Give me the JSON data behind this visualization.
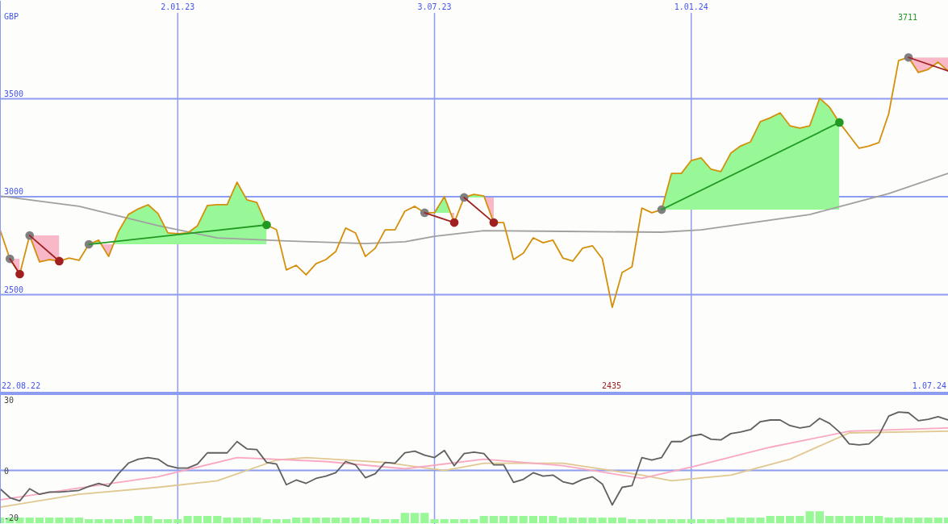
{
  "chart_data": [
    {
      "type": "line",
      "ylabel": "GBP",
      "xlim": [
        "2022-08-29",
        "2024-07-01"
      ],
      "ylim": [
        2000,
        4000
      ],
      "xticks": [
        {
          "value": "2023-01-02",
          "label": "2.01.23"
        },
        {
          "value": "2023-07-03",
          "label": "3.07.23"
        },
        {
          "value": "2024-01-01",
          "label": "1.01.24"
        }
      ],
      "yticks": [
        2500,
        3000,
        3500
      ],
      "grid": true,
      "annotations": [
        "22.08.22",
        "1.07.24",
        "2435",
        "3711"
      ],
      "x": [
        "2022-08-29",
        "2022-09-05",
        "2022-09-12",
        "2022-09-19",
        "2022-09-26",
        "2022-10-03",
        "2022-10-10",
        "2022-10-17",
        "2022-10-24",
        "2022-10-31",
        "2022-11-07",
        "2022-11-14",
        "2022-11-21",
        "2022-11-28",
        "2022-12-05",
        "2022-12-12",
        "2022-12-19",
        "2022-12-26",
        "2023-01-02",
        "2023-01-09",
        "2023-01-16",
        "2023-01-23",
        "2023-01-30",
        "2023-02-06",
        "2023-02-13",
        "2023-02-20",
        "2023-02-27",
        "2023-03-06",
        "2023-03-13",
        "2023-03-20",
        "2023-03-27",
        "2023-04-03",
        "2023-04-10",
        "2023-04-17",
        "2023-04-24",
        "2023-05-01",
        "2023-05-08",
        "2023-05-15",
        "2023-05-22",
        "2023-05-29",
        "2023-06-05",
        "2023-06-12",
        "2023-06-19",
        "2023-06-26",
        "2023-07-03",
        "2023-07-10",
        "2023-07-17",
        "2023-07-24",
        "2023-07-31",
        "2023-08-07",
        "2023-08-14",
        "2023-08-21",
        "2023-08-28",
        "2023-09-04",
        "2023-09-11",
        "2023-09-18",
        "2023-09-25",
        "2023-10-02",
        "2023-10-09",
        "2023-10-16",
        "2023-10-23",
        "2023-10-30",
        "2023-11-06",
        "2023-11-13",
        "2023-11-20",
        "2023-11-27",
        "2023-12-04",
        "2023-12-11",
        "2023-12-18",
        "2023-12-25",
        "2024-01-01",
        "2024-01-08",
        "2024-01-15",
        "2024-01-22",
        "2024-01-29",
        "2024-02-05",
        "2024-02-12",
        "2024-02-19",
        "2024-02-26",
        "2024-03-04",
        "2024-03-11",
        "2024-03-18",
        "2024-03-25",
        "2024-04-01",
        "2024-04-08",
        "2024-04-15",
        "2024-04-22",
        "2024-04-29",
        "2024-05-06",
        "2024-05-13",
        "2024-05-20",
        "2024-05-27",
        "2024-06-03",
        "2024-06-10",
        "2024-06-17",
        "2024-06-24",
        "2024-07-01"
      ],
      "series": [
        {
          "color": "#a0a0a0",
          "x": [
            "2022-08-29",
            "2022-10-24",
            "2022-12-19",
            "2023-01-30",
            "2023-03-20",
            "2023-05-15",
            "2023-06-12",
            "2023-07-03",
            "2023-08-07",
            "2023-10-02",
            "2023-12-11",
            "2024-01-08",
            "2024-03-25",
            "2024-05-20",
            "2024-07-01"
          ],
          "values": [
            3004,
            2951,
            2852,
            2790,
            2774,
            2761,
            2770,
            2798,
            2827,
            2823,
            2819,
            2831,
            2909,
            3016,
            3119
          ]
        },
        {
          "color": "#d4900a",
          "values": [
            2831,
            2683,
            2605,
            2802,
            2667,
            2679,
            2671,
            2687,
            2675,
            2757,
            2778,
            2695,
            2823,
            2909,
            2938,
            2959,
            2914,
            2815,
            2811,
            2815,
            2852,
            2955,
            2959,
            2959,
            3074,
            2984,
            2971,
            2856,
            2831,
            2626,
            2650,
            2601,
            2658,
            2679,
            2720,
            2840,
            2815,
            2695,
            2737,
            2831,
            2831,
            2926,
            2951,
            2918,
            2918,
            3000,
            2868,
            2996,
            3012,
            3004,
            2868,
            2868,
            2679,
            2712,
            2790,
            2765,
            2778,
            2687,
            2671,
            2737,
            2749,
            2683,
            2435,
            2613,
            2642,
            2942,
            2918,
            2934,
            3119,
            3119,
            3185,
            3198,
            3140,
            3128,
            3222,
            3259,
            3280,
            3383,
            3403,
            3428,
            3362,
            3350,
            3362,
            3502,
            3457,
            3379,
            3313,
            3247,
            3259,
            3276,
            3424,
            3695,
            3711,
            3634,
            3650,
            3687,
            3642
          ]
        },
        {
          "type": "scatter",
          "marker": "circle",
          "color": "#808080",
          "x": [
            "2022-09-05",
            "2022-09-19",
            "2022-10-31",
            "2023-06-26",
            "2023-07-24",
            "2023-12-11",
            "2024-06-03"
          ],
          "values": [
            2683,
            2802,
            2757,
            2918,
            2996,
            2934,
            3711
          ]
        },
        {
          "type": "scatter",
          "marker": "circle",
          "color": "#a02020",
          "x": [
            "2022-09-12",
            "2022-10-10",
            "2023-07-17",
            "2023-08-14"
          ],
          "values": [
            2605,
            2671,
            2868,
            2868
          ]
        },
        {
          "type": "scatter",
          "marker": "circle",
          "color": "#229922",
          "x": [
            "2023-03-06",
            "2024-04-15"
          ],
          "values": [
            2856,
            3379
          ]
        },
        {
          "color": "#a02020",
          "x": [
            "2022-09-05",
            "2022-09-12"
          ],
          "values": [
            2683,
            2605
          ]
        },
        {
          "color": "#a02020",
          "x": [
            "2022-09-19",
            "2022-10-10"
          ],
          "values": [
            2802,
            2671
          ]
        },
        {
          "color": "#229922",
          "x": [
            "2022-10-31",
            "2023-03-06"
          ],
          "values": [
            2757,
            2856
          ]
        },
        {
          "color": "#a02020",
          "x": [
            "2023-06-26",
            "2023-07-17"
          ],
          "values": [
            2918,
            2868
          ]
        },
        {
          "color": "#a02020",
          "x": [
            "2023-07-24",
            "2023-08-14"
          ],
          "values": [
            2996,
            2868
          ]
        },
        {
          "color": "#229922",
          "x": [
            "2023-12-11",
            "2024-04-15"
          ],
          "values": [
            2934,
            3379
          ]
        },
        {
          "color": "#a02020",
          "x": [
            "2024-06-03",
            "2024-07-01"
          ],
          "values": [
            3711,
            3642
          ]
        }
      ]
    },
    {
      "type": "line",
      "xlim": [
        "2022-08-29",
        "2024-07-01"
      ],
      "ylim": [
        -22.5,
        32.5
      ],
      "xticks": [
        {
          "value": "2023-01-02",
          "label": null
        },
        {
          "value": "2023-07-03",
          "label": null
        },
        {
          "value": "2024-01-01",
          "label": null
        }
      ],
      "yticks": [
        -20,
        0,
        30
      ],
      "tick_labels": "y",
      "grid": "x",
      "ref_lines": [
        {
          "axis": "y",
          "value": 0
        }
      ],
      "x": [
        "2022-08-29",
        "2022-09-05",
        "2022-09-12",
        "2022-09-19",
        "2022-09-26",
        "2022-10-03",
        "2022-10-10",
        "2022-10-17",
        "2022-10-24",
        "2022-10-31",
        "2022-11-07",
        "2022-11-14",
        "2022-11-21",
        "2022-11-28",
        "2022-12-05",
        "2022-12-12",
        "2022-12-19",
        "2022-12-26",
        "2023-01-02",
        "2023-01-09",
        "2023-01-16",
        "2023-01-23",
        "2023-01-30",
        "2023-02-06",
        "2023-02-13",
        "2023-02-20",
        "2023-02-27",
        "2023-03-06",
        "2023-03-13",
        "2023-03-20",
        "2023-03-27",
        "2023-04-03",
        "2023-04-10",
        "2023-04-17",
        "2023-04-24",
        "2023-05-01",
        "2023-05-08",
        "2023-05-15",
        "2023-05-22",
        "2023-05-29",
        "2023-06-05",
        "2023-06-12",
        "2023-06-19",
        "2023-06-26",
        "2023-07-03",
        "2023-07-10",
        "2023-07-17",
        "2023-07-24",
        "2023-07-31",
        "2023-08-07",
        "2023-08-14",
        "2023-08-21",
        "2023-08-28",
        "2023-09-04",
        "2023-09-11",
        "2023-09-18",
        "2023-09-25",
        "2023-10-02",
        "2023-10-09",
        "2023-10-16",
        "2023-10-23",
        "2023-10-30",
        "2023-11-06",
        "2023-11-13",
        "2023-11-20",
        "2023-11-27",
        "2023-12-04",
        "2023-12-11",
        "2023-12-18",
        "2023-12-25",
        "2024-01-01",
        "2024-01-08",
        "2024-01-15",
        "2024-01-22",
        "2024-01-29",
        "2024-02-05",
        "2024-02-12",
        "2024-02-19",
        "2024-02-26",
        "2024-03-04",
        "2024-03-11",
        "2024-03-18",
        "2024-03-25",
        "2024-04-01",
        "2024-04-08",
        "2024-04-15",
        "2024-04-22",
        "2024-04-29",
        "2024-05-06",
        "2024-05-13",
        "2024-05-20",
        "2024-05-27",
        "2024-06-03",
        "2024-06-10",
        "2024-06-17",
        "2024-06-24",
        "2024-07-01"
      ],
      "series": [
        {
          "type": "bar",
          "color": "#98f898",
          "values": [
            2.4,
            2.4,
            2.4,
            2.4,
            2.4,
            2.4,
            2.4,
            2.4,
            2.4,
            1.7,
            1.7,
            1.7,
            1.7,
            1.7,
            3.1,
            3.1,
            1.7,
            1.7,
            1.7,
            3.1,
            3.1,
            3.1,
            3.1,
            2.4,
            2.4,
            2.4,
            2.4,
            1.7,
            1.7,
            1.7,
            2.4,
            2.4,
            2.4,
            2.4,
            2.4,
            2.4,
            2.4,
            2.4,
            1.7,
            1.7,
            1.7,
            4.4,
            4.4,
            4.4,
            1.7,
            1.7,
            1.7,
            1.7,
            1.7,
            3.1,
            3.1,
            3.1,
            3.1,
            3.1,
            3.1,
            3.1,
            3.1,
            2.4,
            2.4,
            2.4,
            2.4,
            2.4,
            2.4,
            2.4,
            1.7,
            1.7,
            1.7,
            1.7,
            1.7,
            1.7,
            1.7,
            1.7,
            1.7,
            1.7,
            2.4,
            2.4,
            2.4,
            2.4,
            3.1,
            3.1,
            3.1,
            3.1,
            5.1,
            5.1,
            3.1,
            3.1,
            3.1,
            3.1,
            3.1,
            3.1,
            2.4,
            2.4,
            2.4,
            2.4,
            2.4,
            2.4,
            2.4
          ],
          "base": [
            -22.5,
            -22.5,
            -22.5,
            -22.5,
            -22.5,
            -22.5,
            -22.5,
            -22.5,
            -22.5,
            -22.5,
            -22.5,
            -22.5,
            -22.5,
            -22.5,
            -22.5,
            -22.5,
            -22.5,
            -22.5,
            -22.5,
            -22.5,
            -22.5,
            -22.5,
            -22.5,
            -22.5,
            -22.5,
            -22.5,
            -22.5,
            -22.5,
            -22.5,
            -22.5,
            -22.5,
            -22.5,
            -22.5,
            -22.5,
            -22.5,
            -22.5,
            -22.5,
            -22.5,
            -22.5,
            -22.5,
            -22.5,
            -22.5,
            -22.5,
            -22.5,
            -22.5,
            -22.5,
            -22.5,
            -22.5,
            -22.5,
            -22.5,
            -22.5,
            -22.5,
            -22.5,
            -22.5,
            -22.5,
            -22.5,
            -22.5,
            -22.5,
            -22.5,
            -22.5,
            -22.5,
            -22.5,
            -22.5,
            -22.5,
            -22.5,
            -22.5,
            -22.5,
            -22.5,
            -22.5,
            -22.5,
            -22.5,
            -22.5,
            -22.5,
            -22.5,
            -22.5,
            -22.5,
            -22.5,
            -22.5,
            -22.5,
            -22.5,
            -22.5,
            -22.5,
            -22.5,
            -22.5,
            -22.5,
            -22.5,
            -22.5,
            -22.5,
            -22.5,
            -22.5,
            -22.5,
            -22.5,
            -22.5,
            -22.5,
            -22.5,
            -22.5,
            -22.5
          ]
        },
        {
          "color": "#e0c890",
          "x": [
            "2022-08-29",
            "2022-10-24",
            "2022-12-19",
            "2023-01-30",
            "2023-03-13",
            "2023-04-03",
            "2023-05-29",
            "2023-07-10",
            "2023-08-07",
            "2023-10-02",
            "2023-11-27",
            "2023-12-18",
            "2024-01-29",
            "2024-03-11",
            "2024-04-22",
            "2024-07-01"
          ],
          "values": [
            -15.7,
            -10.2,
            -7.2,
            -4.4,
            4.4,
            5.5,
            3.4,
            0,
            3.1,
            3.1,
            -2,
            -4.4,
            -2,
            4.8,
            16,
            16.7
          ]
        },
        {
          "color": "#f8a8c0",
          "x": [
            "2022-08-29",
            "2022-10-24",
            "2022-12-19",
            "2023-02-13",
            "2023-04-17",
            "2023-06-12",
            "2023-08-07",
            "2023-10-02",
            "2023-11-27",
            "2024-01-01",
            "2024-02-26",
            "2024-04-22",
            "2024-07-01"
          ],
          "values": [
            -12.6,
            -7.5,
            -2.7,
            5.5,
            3.8,
            0.7,
            4.8,
            2,
            -3.4,
            1.4,
            9.9,
            16.7,
            18.1
          ]
        },
        {
          "color": "#606060",
          "values": [
            -7.8,
            -11.6,
            -13,
            -7.8,
            -10.2,
            -9.2,
            -9.2,
            -8.9,
            -8.5,
            -6.8,
            -5.5,
            -6.8,
            -1.4,
            3.1,
            4.8,
            5.5,
            4.8,
            2,
            1,
            1,
            2.7,
            7.5,
            7.5,
            7.5,
            12.3,
            9.2,
            8.9,
            3.4,
            2.7,
            -6.1,
            -4.1,
            -5.5,
            -3.4,
            -2.4,
            -1,
            3.8,
            2.4,
            -3.1,
            -1.4,
            3.4,
            3.1,
            7.5,
            8.2,
            6.5,
            5.5,
            8.5,
            2,
            7.2,
            7.8,
            7.2,
            2.4,
            2.4,
            -5.1,
            -3.8,
            -1,
            -2.4,
            -2,
            -4.8,
            -5.8,
            -3.8,
            -2.7,
            -5.8,
            -14.7,
            -7.2,
            -6.5,
            5.5,
            4.4,
            5.5,
            12.3,
            12.3,
            14.7,
            15.4,
            13.3,
            13,
            15.7,
            16.4,
            17.4,
            20.8,
            21.5,
            21.5,
            19.1,
            18.1,
            18.8,
            22.2,
            20.1,
            16.4,
            11.3,
            10.9,
            11.3,
            15,
            23.2,
            24.9,
            24.6,
            21.2,
            21.8,
            22.9,
            21.5
          ]
        }
      ]
    }
  ]
}
